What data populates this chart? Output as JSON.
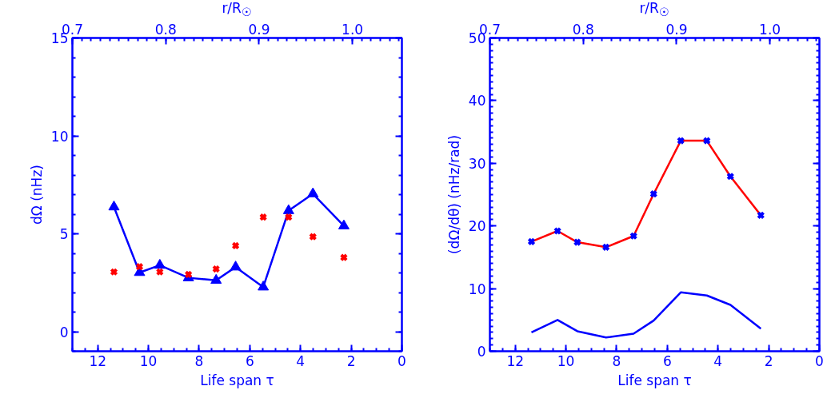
{
  "chart_data": [
    {
      "type": "line",
      "xlabel": "Life span τ",
      "ylabel": "dΩ (nHz)",
      "x2label": "r/R$_{☉}$",
      "x": [
        11.36,
        10.35,
        9.55,
        8.42,
        7.33,
        6.56,
        5.47,
        4.47,
        3.51,
        2.29
      ],
      "xlim": [
        13,
        0
      ],
      "xticks": [
        12,
        10,
        8,
        6,
        4,
        2,
        0
      ],
      "x2lim": [
        0.7,
        1.053
      ],
      "x2ticks": [
        0.7,
        0.8,
        0.9,
        {
          "value": 1.0,
          "label": "1.0"
        }
      ],
      "ylim": [
        -1,
        15
      ],
      "yticks": [
        0,
        5,
        10,
        15
      ],
      "series": [
        {
          "type": "line",
          "color": "#0000ff",
          "marker": "triangle",
          "values": [
            6.37,
            3.02,
            3.39,
            2.75,
            2.62,
            3.3,
            2.28,
            6.18,
            7.04,
            5.4
          ]
        },
        {
          "type": "scatter",
          "color": "#ff0000",
          "marker": "cross",
          "values": [
            3.05,
            3.32,
            3.05,
            2.92,
            3.2,
            4.39,
            5.85,
            5.85,
            4.85,
            3.79
          ]
        }
      ]
    },
    {
      "type": "line",
      "xlabel": "Life span τ",
      "ylabel": "(dΩ/dθ) (nHz/rad)",
      "x2label": "r/R$_{☉}$",
      "x": [
        11.36,
        10.33,
        9.55,
        8.42,
        7.33,
        6.54,
        5.47,
        4.44,
        3.51,
        2.31
      ],
      "xlim": [
        13,
        0
      ],
      "xticks": [
        12,
        10,
        8,
        6,
        4,
        2,
        0
      ],
      "x2lim": [
        0.7,
        1.053
      ],
      "x2ticks": [
        0.7,
        0.8,
        0.9,
        {
          "value": 1.0,
          "label": "1.0"
        }
      ],
      "ylim": [
        0,
        50
      ],
      "yticks": [
        0,
        10,
        20,
        30,
        40,
        50
      ],
      "series": [
        {
          "type": "line",
          "color": "#ff0000",
          "marker": "none",
          "values": [
            17.5,
            19.2,
            17.4,
            16.6,
            18.4,
            25.1,
            33.6,
            33.6,
            27.9,
            21.7
          ]
        },
        {
          "type": "scatter",
          "color": "#0000ff",
          "marker": "cross",
          "values": [
            17.5,
            19.2,
            17.4,
            16.6,
            18.4,
            25.1,
            33.6,
            33.6,
            27.9,
            21.7
          ]
        },
        {
          "type": "line",
          "color": "#0000ff",
          "marker": "none",
          "values": [
            3.0,
            5.0,
            3.2,
            2.2,
            2.8,
            4.9,
            9.4,
            8.9,
            7.4,
            3.6
          ]
        }
      ]
    }
  ]
}
